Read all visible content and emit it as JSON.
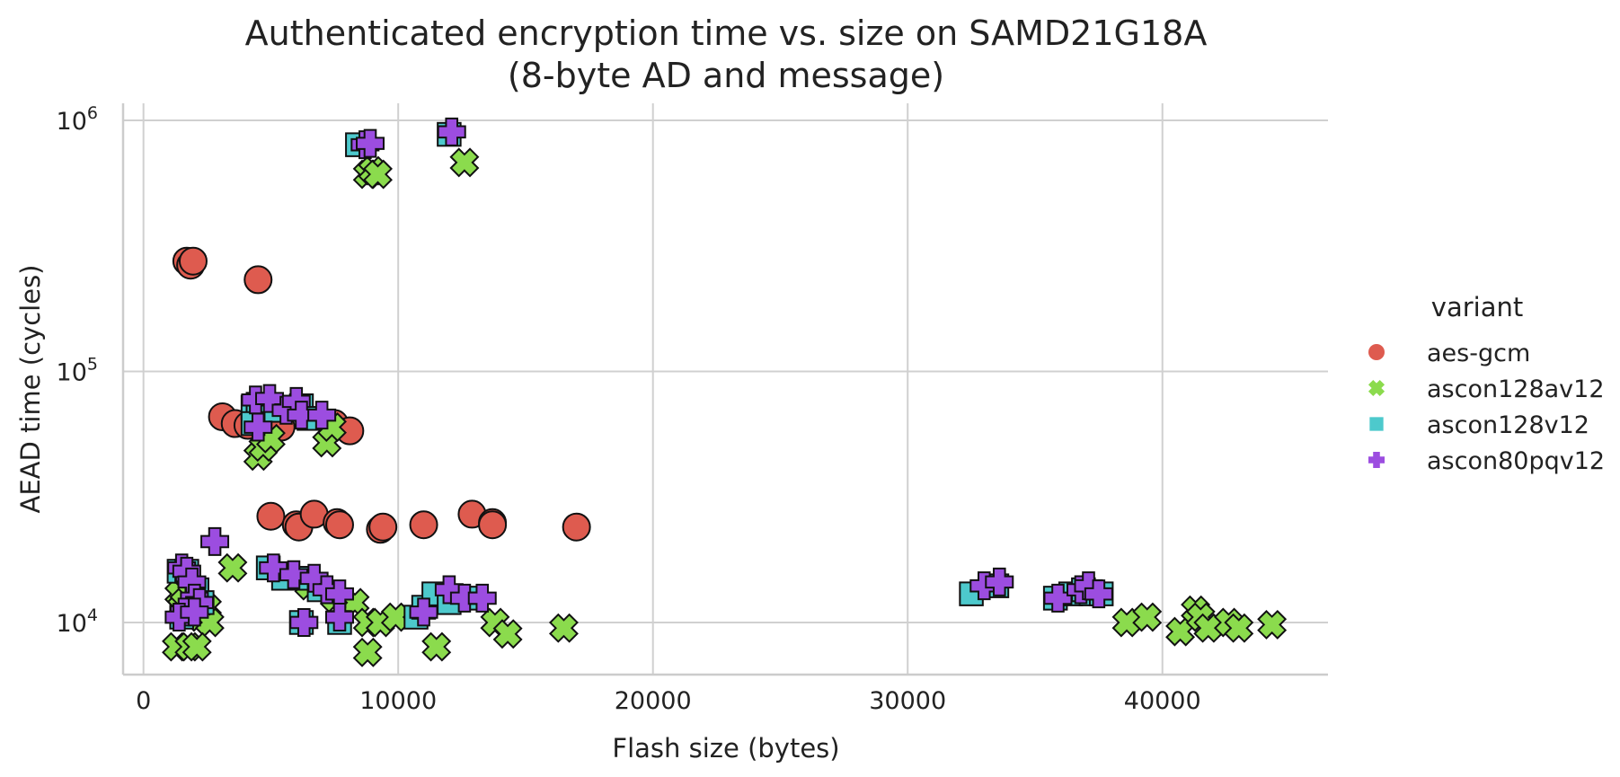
{
  "chart_data": {
    "type": "scatter",
    "title": [
      "Authenticated encryption time vs. size on SAMD21G18A",
      "(8-byte AD and message)"
    ],
    "xlabel": "Flash size (bytes)",
    "ylabel": "AEAD time (cycles)",
    "xlim": [
      -800,
      46500
    ],
    "ylim": [
      6200,
      1170000
    ],
    "yscale": "log",
    "grid": true,
    "xticks": [
      {
        "value": 0,
        "label": "0"
      },
      {
        "value": 10000,
        "label": "10000"
      },
      {
        "value": 20000,
        "label": "20000"
      },
      {
        "value": 30000,
        "label": "30000"
      },
      {
        "value": 40000,
        "label": "40000"
      }
    ],
    "yticks": [
      {
        "value": 10000,
        "base": "10",
        "exp": "4"
      },
      {
        "value": 100000,
        "base": "10",
        "exp": "5"
      },
      {
        "value": 1000000,
        "base": "10",
        "exp": "6"
      }
    ],
    "legend": {
      "title": "variant",
      "position": "right"
    },
    "series": [
      {
        "name": "aes-gcm",
        "marker": "circle",
        "color": "#de5b4f",
        "points": [
          [
            1700,
            275000
          ],
          [
            1850,
            265000
          ],
          [
            1950,
            275000
          ],
          [
            4500,
            232000
          ],
          [
            3100,
            66000
          ],
          [
            3600,
            62000
          ],
          [
            4100,
            61000
          ],
          [
            5400,
            60000
          ],
          [
            7500,
            62000
          ],
          [
            8100,
            58000
          ],
          [
            5000,
            26500
          ],
          [
            6000,
            24500
          ],
          [
            6100,
            24000
          ],
          [
            6700,
            27000
          ],
          [
            7600,
            25000
          ],
          [
            7700,
            24500
          ],
          [
            9300,
            23500
          ],
          [
            9400,
            24000
          ],
          [
            11000,
            24500
          ],
          [
            12900,
            27000
          ],
          [
            13700,
            25000
          ],
          [
            13700,
            24500
          ],
          [
            17000,
            24000
          ]
        ]
      },
      {
        "name": "ascon128av12",
        "marker": "x",
        "color": "#8bdb4d",
        "points": [
          [
            8800,
            610000
          ],
          [
            9000,
            630000
          ],
          [
            9200,
            610000
          ],
          [
            12600,
            680000
          ],
          [
            4500,
            46000
          ],
          [
            4700,
            50000
          ],
          [
            5000,
            54000
          ],
          [
            7200,
            52000
          ],
          [
            7400,
            60000
          ],
          [
            3500,
            16500
          ],
          [
            6500,
            14000
          ],
          [
            7500,
            12500
          ],
          [
            8300,
            12000
          ],
          [
            1400,
            13000
          ],
          [
            1500,
            11500
          ],
          [
            1600,
            12000
          ],
          [
            2000,
            11000
          ],
          [
            2200,
            10500
          ],
          [
            2500,
            11500
          ],
          [
            2600,
            10000
          ],
          [
            8800,
            10000
          ],
          [
            9300,
            10000
          ],
          [
            9900,
            10500
          ],
          [
            13800,
            10000
          ],
          [
            14300,
            9000
          ],
          [
            16500,
            9500
          ],
          [
            1300,
            8000
          ],
          [
            1800,
            8000
          ],
          [
            2100,
            8000
          ],
          [
            8800,
            7600
          ],
          [
            11500,
            8000
          ],
          [
            38600,
            10000
          ],
          [
            39400,
            10500
          ],
          [
            40700,
            9200
          ],
          [
            41300,
            11200
          ],
          [
            41500,
            10500
          ],
          [
            41800,
            9500
          ],
          [
            42600,
            10000
          ],
          [
            43000,
            9500
          ],
          [
            44300,
            9800
          ]
        ]
      },
      {
        "name": "ascon128v12",
        "marker": "square",
        "color": "#4dc9cc",
        "points": [
          [
            8400,
            800000
          ],
          [
            12000,
            880000
          ],
          [
            4300,
            72000
          ],
          [
            4500,
            74000
          ],
          [
            5200,
            70000
          ],
          [
            6200,
            73000
          ],
          [
            6500,
            65000
          ],
          [
            4300,
            62000
          ],
          [
            1400,
            16000
          ],
          [
            1700,
            16000
          ],
          [
            2100,
            13500
          ],
          [
            1500,
            10500
          ],
          [
            2300,
            12000
          ],
          [
            4900,
            16500
          ],
          [
            5500,
            15000
          ],
          [
            6400,
            15000
          ],
          [
            6900,
            13500
          ],
          [
            6200,
            10000
          ],
          [
            7700,
            10000
          ],
          [
            10700,
            10500
          ],
          [
            11000,
            11500
          ],
          [
            11400,
            13000
          ],
          [
            12000,
            12000
          ],
          [
            13000,
            12500
          ],
          [
            32500,
            13000
          ],
          [
            33500,
            14000
          ],
          [
            35800,
            12500
          ],
          [
            36400,
            13000
          ],
          [
            36900,
            13500
          ],
          [
            37200,
            13000
          ],
          [
            37600,
            13000
          ]
        ]
      },
      {
        "name": "ascon80pqv12",
        "marker": "plus",
        "color": "#9c4de0",
        "points": [
          [
            8700,
            800000
          ],
          [
            8900,
            810000
          ],
          [
            12100,
            900000
          ],
          [
            4400,
            77000
          ],
          [
            4950,
            78000
          ],
          [
            5600,
            70000
          ],
          [
            6000,
            76000
          ],
          [
            6200,
            67000
          ],
          [
            7000,
            67000
          ],
          [
            4500,
            60000
          ],
          [
            2800,
            21000
          ],
          [
            1500,
            16500
          ],
          [
            1700,
            16000
          ],
          [
            1900,
            14500
          ],
          [
            2000,
            12500
          ],
          [
            2200,
            12000
          ],
          [
            1600,
            11000
          ],
          [
            1400,
            10500
          ],
          [
            2000,
            11000
          ],
          [
            5100,
            16500
          ],
          [
            5900,
            15500
          ],
          [
            6700,
            15000
          ],
          [
            7200,
            13500
          ],
          [
            7700,
            13000
          ],
          [
            6300,
            10000
          ],
          [
            7700,
            10500
          ],
          [
            11000,
            11000
          ],
          [
            12000,
            13500
          ],
          [
            12600,
            12500
          ],
          [
            13300,
            12500
          ],
          [
            33000,
            14000
          ],
          [
            33600,
            14500
          ],
          [
            35900,
            12500
          ],
          [
            36800,
            13500
          ],
          [
            37100,
            14000
          ],
          [
            37500,
            13000
          ]
        ]
      }
    ]
  }
}
